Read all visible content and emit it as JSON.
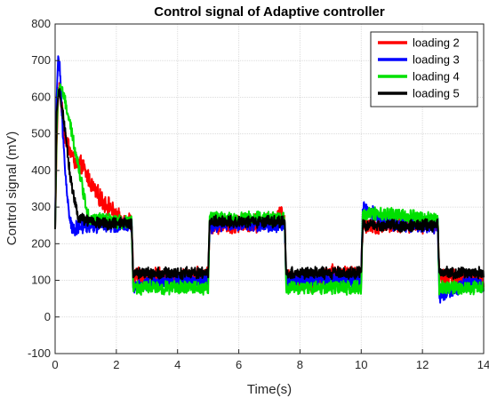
{
  "chart_data": {
    "type": "line",
    "title": "Control signal of Adaptive controller",
    "xlabel": "Time(s)",
    "ylabel": "Control signal (mV)",
    "xlim": [
      0,
      14
    ],
    "ylim": [
      -100,
      800
    ],
    "xticks": [
      "0",
      "2",
      "4",
      "6",
      "8",
      "10",
      "12",
      "14"
    ],
    "yticks": [
      "-100",
      "0",
      "100",
      "200",
      "300",
      "400",
      "500",
      "600",
      "700",
      "800"
    ],
    "grid": true,
    "legend_position": "top-right",
    "series": [
      {
        "name": "loading 2",
        "color": "#ff0000",
        "peak": 625,
        "decay_end": 1.9,
        "noise": 22,
        "points": [
          [
            0,
            240
          ],
          [
            0.05,
            470
          ],
          [
            0.1,
            600
          ],
          [
            0.15,
            625
          ],
          [
            0.3,
            500
          ],
          [
            0.6,
            430
          ],
          [
            0.9,
            410
          ],
          [
            1.2,
            360
          ],
          [
            1.5,
            320
          ],
          [
            1.8,
            300
          ],
          [
            2.0,
            270
          ],
          [
            2.5,
            260
          ],
          [
            2.55,
            110
          ],
          [
            3.5,
            110
          ],
          [
            4.0,
            100
          ],
          [
            4.5,
            110
          ],
          [
            5.0,
            110
          ],
          [
            5.05,
            250
          ],
          [
            6.0,
            255
          ],
          [
            7.0,
            260
          ],
          [
            7.4,
            280
          ],
          [
            7.5,
            260
          ],
          [
            7.55,
            110
          ],
          [
            8.5,
            90
          ],
          [
            9.0,
            120
          ],
          [
            10.0,
            110
          ],
          [
            10.05,
            250
          ],
          [
            11.0,
            255
          ],
          [
            12.0,
            255
          ],
          [
            12.5,
            255
          ],
          [
            12.55,
            110
          ],
          [
            13.5,
            100
          ],
          [
            14.0,
            100
          ]
        ]
      },
      {
        "name": "loading 3",
        "color": "#0000ff",
        "peak": 712,
        "decay_end": 0.55,
        "noise": 18,
        "points": [
          [
            0,
            240
          ],
          [
            0.05,
            600
          ],
          [
            0.1,
            712
          ],
          [
            0.15,
            690
          ],
          [
            0.25,
            500
          ],
          [
            0.4,
            320
          ],
          [
            0.55,
            240
          ],
          [
            1.0,
            250
          ],
          [
            2.0,
            250
          ],
          [
            2.5,
            250
          ],
          [
            2.55,
            80
          ],
          [
            3.5,
            100
          ],
          [
            4.5,
            100
          ],
          [
            5.0,
            100
          ],
          [
            5.05,
            250
          ],
          [
            6.0,
            255
          ],
          [
            7.0,
            250
          ],
          [
            7.5,
            250
          ],
          [
            7.55,
            100
          ],
          [
            8.5,
            105
          ],
          [
            9.5,
            100
          ],
          [
            10.0,
            100
          ],
          [
            10.05,
            300
          ],
          [
            11.0,
            255
          ],
          [
            12.0,
            250
          ],
          [
            12.5,
            250
          ],
          [
            12.55,
            60
          ],
          [
            13.5,
            90
          ],
          [
            14.0,
            90
          ]
        ]
      },
      {
        "name": "loading 4",
        "color": "#00e000",
        "peak": 630,
        "decay_end": 1.1,
        "noise": 16,
        "points": [
          [
            0,
            240
          ],
          [
            0.05,
            500
          ],
          [
            0.1,
            620
          ],
          [
            0.2,
            630
          ],
          [
            0.4,
            560
          ],
          [
            0.7,
            440
          ],
          [
            0.9,
            350
          ],
          [
            1.1,
            270
          ],
          [
            2.0,
            260
          ],
          [
            2.5,
            260
          ],
          [
            2.55,
            80
          ],
          [
            3.5,
            80
          ],
          [
            4.5,
            80
          ],
          [
            5.0,
            80
          ],
          [
            5.05,
            270
          ],
          [
            6.0,
            270
          ],
          [
            7.0,
            270
          ],
          [
            7.5,
            270
          ],
          [
            7.55,
            80
          ],
          [
            8.5,
            80
          ],
          [
            9.5,
            80
          ],
          [
            10.0,
            80
          ],
          [
            10.05,
            280
          ],
          [
            11.0,
            280
          ],
          [
            12.0,
            270
          ],
          [
            12.5,
            270
          ],
          [
            12.55,
            80
          ],
          [
            13.5,
            80
          ],
          [
            14.0,
            80
          ]
        ]
      },
      {
        "name": "loading 5",
        "color": "#000000",
        "peak": 620,
        "decay_end": 0.75,
        "noise": 14,
        "points": [
          [
            0,
            240
          ],
          [
            0.05,
            560
          ],
          [
            0.1,
            600
          ],
          [
            0.15,
            620
          ],
          [
            0.3,
            520
          ],
          [
            0.5,
            380
          ],
          [
            0.75,
            270
          ],
          [
            1.5,
            255
          ],
          [
            2.5,
            255
          ],
          [
            2.55,
            120
          ],
          [
            3.5,
            120
          ],
          [
            4.5,
            120
          ],
          [
            5.0,
            120
          ],
          [
            5.05,
            260
          ],
          [
            6.0,
            260
          ],
          [
            7.0,
            260
          ],
          [
            7.5,
            260
          ],
          [
            7.55,
            120
          ],
          [
            8.5,
            120
          ],
          [
            9.5,
            120
          ],
          [
            10.0,
            120
          ],
          [
            10.05,
            250
          ],
          [
            11.0,
            250
          ],
          [
            12.0,
            250
          ],
          [
            12.5,
            250
          ],
          [
            12.55,
            120
          ],
          [
            13.5,
            120
          ],
          [
            14.0,
            120
          ]
        ]
      }
    ]
  }
}
